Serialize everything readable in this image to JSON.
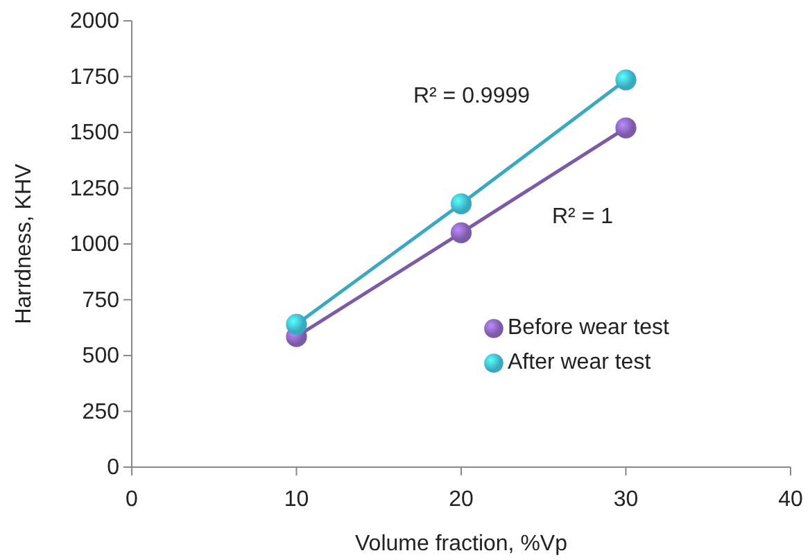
{
  "chart_data": {
    "type": "line",
    "xlabel": "Volume fraction, %Vp",
    "ylabel": "Harrdness, KHV",
    "xlim": [
      0,
      40
    ],
    "xticks": [
      0,
      10,
      20,
      30,
      40
    ],
    "ylim": [
      0,
      2000
    ],
    "yticks": [
      0,
      250,
      500,
      750,
      1000,
      1250,
      1500,
      1750,
      2000
    ],
    "x": [
      10,
      20,
      30
    ],
    "marker": "circle",
    "legend": "bottom right",
    "series": [
      {
        "name": "Before wear test",
        "color": "#7b5aa6",
        "values": [
          585,
          1050,
          1520
        ]
      },
      {
        "name": "After wear test",
        "color": "#3aa9c0",
        "values": [
          640,
          1180,
          1735
        ]
      }
    ],
    "annotations": [
      "R² = 0.9999",
      "R² = 1"
    ]
  }
}
